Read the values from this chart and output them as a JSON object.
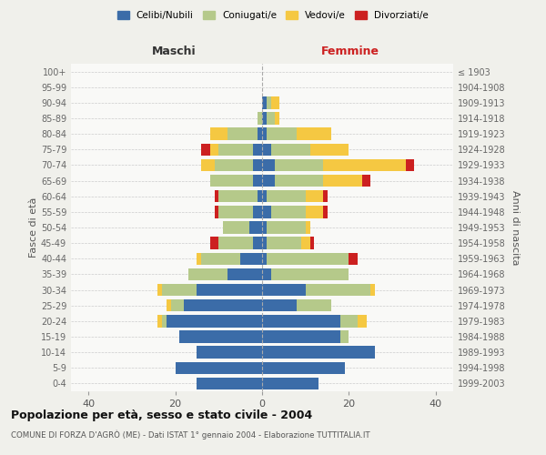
{
  "age_groups": [
    "0-4",
    "5-9",
    "10-14",
    "15-19",
    "20-24",
    "25-29",
    "30-34",
    "35-39",
    "40-44",
    "45-49",
    "50-54",
    "55-59",
    "60-64",
    "65-69",
    "70-74",
    "75-79",
    "80-84",
    "85-89",
    "90-94",
    "95-99",
    "100+"
  ],
  "birth_years": [
    "1999-2003",
    "1994-1998",
    "1989-1993",
    "1984-1988",
    "1979-1983",
    "1974-1978",
    "1969-1973",
    "1964-1968",
    "1959-1963",
    "1954-1958",
    "1949-1953",
    "1944-1948",
    "1939-1943",
    "1934-1938",
    "1929-1933",
    "1924-1928",
    "1919-1923",
    "1914-1918",
    "1909-1913",
    "1904-1908",
    "≤ 1903"
  ],
  "maschi": {
    "celibi": [
      15,
      20,
      15,
      19,
      22,
      18,
      15,
      8,
      5,
      2,
      3,
      2,
      1,
      2,
      2,
      2,
      1,
      0,
      0,
      0,
      0
    ],
    "coniugati": [
      0,
      0,
      0,
      0,
      1,
      3,
      8,
      9,
      9,
      8,
      6,
      8,
      9,
      10,
      9,
      8,
      7,
      1,
      0,
      0,
      0
    ],
    "vedovi": [
      0,
      0,
      0,
      0,
      1,
      1,
      1,
      0,
      1,
      0,
      0,
      0,
      0,
      0,
      3,
      2,
      4,
      0,
      0,
      0,
      0
    ],
    "divorziati": [
      0,
      0,
      0,
      0,
      0,
      0,
      0,
      0,
      0,
      2,
      0,
      1,
      1,
      0,
      0,
      2,
      0,
      0,
      0,
      0,
      0
    ]
  },
  "femmine": {
    "nubili": [
      13,
      19,
      26,
      18,
      18,
      8,
      10,
      2,
      1,
      1,
      1,
      2,
      1,
      3,
      3,
      2,
      1,
      1,
      1,
      0,
      0
    ],
    "coniugate": [
      0,
      0,
      0,
      2,
      4,
      8,
      15,
      18,
      19,
      8,
      9,
      8,
      9,
      11,
      11,
      9,
      7,
      2,
      1,
      0,
      0
    ],
    "vedove": [
      0,
      0,
      0,
      0,
      2,
      0,
      1,
      0,
      0,
      2,
      1,
      4,
      4,
      9,
      19,
      9,
      8,
      1,
      2,
      0,
      0
    ],
    "divorziate": [
      0,
      0,
      0,
      0,
      0,
      0,
      0,
      0,
      2,
      1,
      0,
      1,
      1,
      2,
      2,
      0,
      0,
      0,
      0,
      0,
      0
    ]
  },
  "colors": {
    "celibi": "#3b6ca8",
    "coniugati": "#b5c98a",
    "vedovi": "#f5c842",
    "divorziati": "#cc2020"
  },
  "title": "Popolazione per età, sesso e stato civile - 2004",
  "subtitle": "COMUNE DI FORZA D'AGRÒ (ME) - Dati ISTAT 1° gennaio 2004 - Elaborazione TUTTITALIA.IT",
  "xlabel_left": "Maschi",
  "xlabel_right": "Femmine",
  "ylabel_left": "Fasce di età",
  "ylabel_right": "Anni di nascita",
  "xlim": 44,
  "legend_labels": [
    "Celibi/Nubili",
    "Coniugati/e",
    "Vedovi/e",
    "Divorziati/e"
  ],
  "bg_color": "#f0f0eb",
  "bar_bg_color": "#f9f9f7"
}
